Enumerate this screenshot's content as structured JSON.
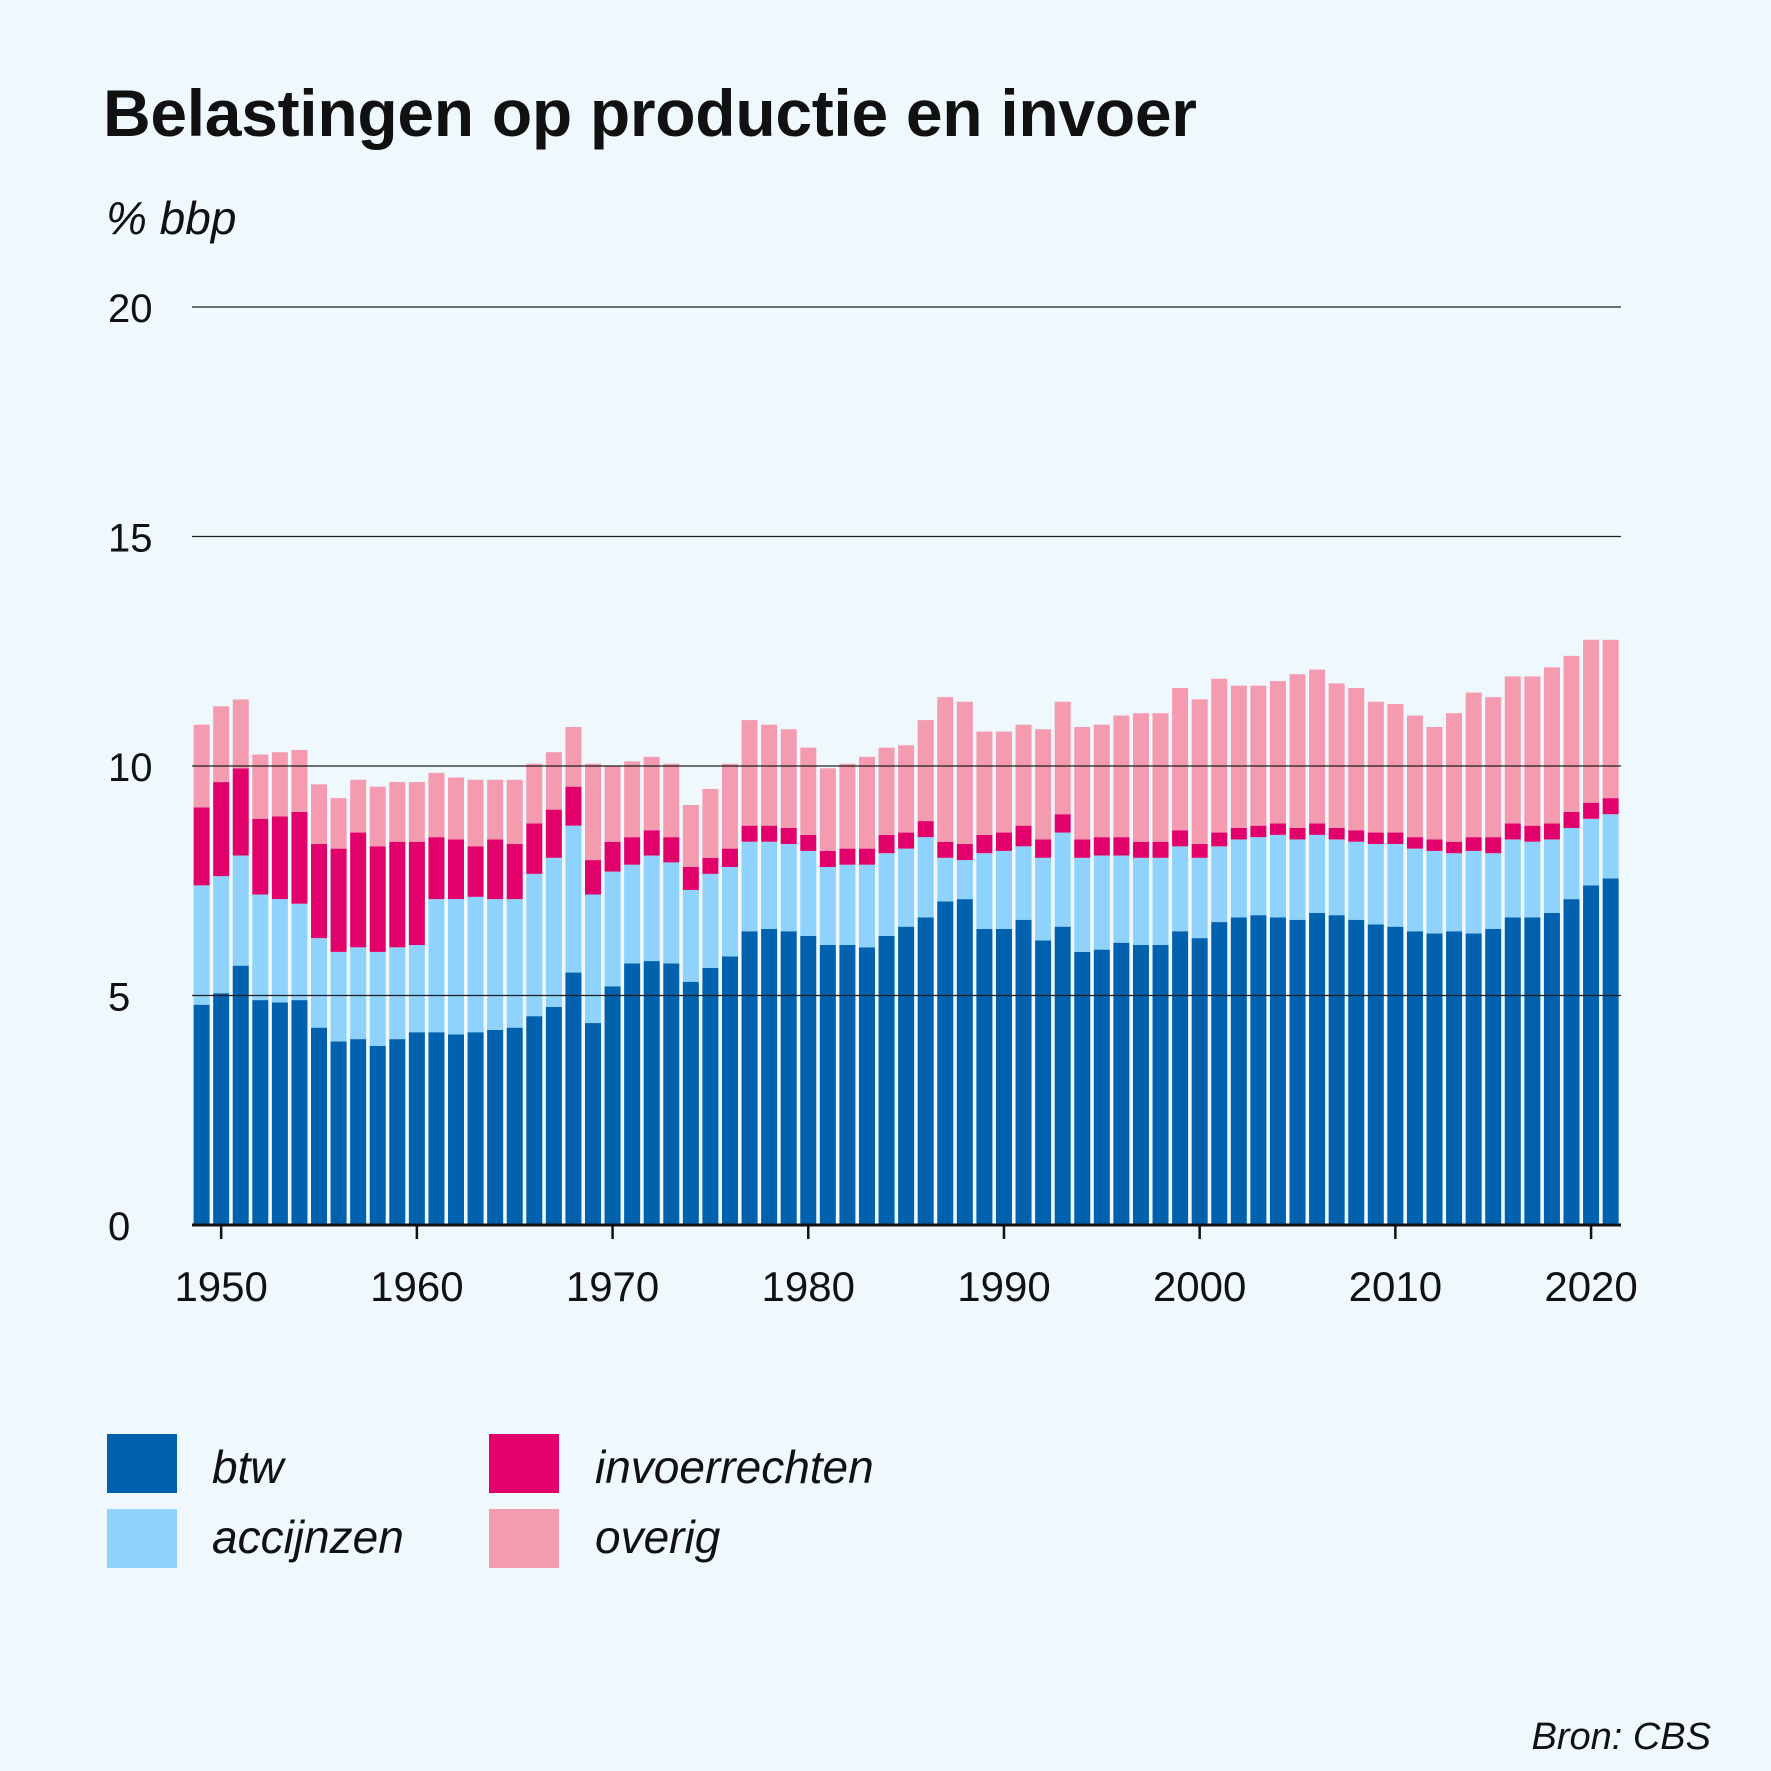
{
  "chart_data": {
    "type": "bar",
    "stacked": true,
    "title": "Belastingen op productie en invoer",
    "ylabel": "% bbp",
    "xlabel": "",
    "ylim": [
      0,
      20
    ],
    "yticks": [
      0,
      5,
      10,
      15,
      20
    ],
    "xticks": [
      1950,
      1960,
      1970,
      1980,
      1990,
      2000,
      2010,
      2020
    ],
    "grid": true,
    "source": "Bron: CBS",
    "categories": [
      1949,
      1950,
      1951,
      1952,
      1953,
      1954,
      1955,
      1956,
      1957,
      1958,
      1959,
      1960,
      1961,
      1962,
      1963,
      1964,
      1965,
      1966,
      1967,
      1968,
      1969,
      1970,
      1971,
      1972,
      1973,
      1974,
      1975,
      1976,
      1977,
      1978,
      1979,
      1980,
      1981,
      1982,
      1983,
      1984,
      1985,
      1986,
      1987,
      1988,
      1989,
      1990,
      1991,
      1992,
      1993,
      1994,
      1995,
      1996,
      1997,
      1998,
      1999,
      2000,
      2001,
      2002,
      2003,
      2004,
      2005,
      2006,
      2007,
      2008,
      2009,
      2010,
      2011,
      2012,
      2013,
      2014,
      2015,
      2016,
      2017,
      2018,
      2019,
      2020,
      2021
    ],
    "series": [
      {
        "name": "btw",
        "color": "#0061ae",
        "values": [
          4.8,
          5.05,
          5.65,
          4.9,
          4.85,
          4.9,
          4.3,
          4.0,
          4.05,
          3.9,
          4.05,
          4.2,
          4.2,
          4.15,
          4.2,
          4.25,
          4.3,
          4.55,
          4.75,
          5.5,
          4.4,
          5.2,
          5.7,
          5.75,
          5.7,
          5.3,
          5.6,
          5.85,
          6.4,
          6.45,
          6.4,
          6.3,
          6.1,
          6.1,
          6.05,
          6.3,
          6.5,
          6.7,
          7.05,
          7.1,
          6.45,
          6.45,
          6.65,
          6.2,
          6.5,
          5.95,
          6.0,
          6.15,
          6.1,
          6.1,
          6.4,
          6.25,
          6.6,
          6.7,
          6.75,
          6.7,
          6.65,
          6.8,
          6.75,
          6.65,
          6.55,
          6.5,
          6.4,
          6.35,
          6.4,
          6.35,
          6.45,
          6.7,
          6.7,
          6.8,
          7.1,
          7.4,
          7.55
        ]
      },
      {
        "name": "accijnzen",
        "color": "#8fd3fc",
        "values": [
          2.6,
          2.55,
          2.4,
          2.3,
          2.25,
          2.1,
          1.95,
          1.95,
          2.0,
          2.05,
          2.0,
          1.9,
          2.9,
          2.95,
          2.95,
          2.85,
          2.8,
          3.1,
          3.25,
          3.2,
          2.8,
          2.5,
          2.15,
          2.3,
          2.2,
          2.0,
          2.05,
          1.95,
          1.95,
          1.9,
          1.9,
          1.85,
          1.7,
          1.75,
          1.8,
          1.8,
          1.7,
          1.75,
          0.95,
          0.85,
          1.65,
          1.7,
          1.6,
          1.8,
          2.05,
          2.05,
          2.05,
          1.9,
          1.9,
          1.9,
          1.85,
          1.75,
          1.65,
          1.7,
          1.7,
          1.8,
          1.75,
          1.7,
          1.65,
          1.7,
          1.75,
          1.8,
          1.8,
          1.8,
          1.7,
          1.8,
          1.65,
          1.7,
          1.65,
          1.6,
          1.55,
          1.45,
          1.4
        ]
      },
      {
        "name": "invoerrechten",
        "color": "#e2006b",
        "values": [
          1.7,
          2.05,
          1.9,
          1.65,
          1.8,
          2.0,
          2.05,
          2.25,
          2.5,
          2.3,
          2.3,
          2.25,
          1.35,
          1.3,
          1.1,
          1.3,
          1.2,
          1.1,
          1.05,
          0.85,
          0.75,
          0.65,
          0.6,
          0.55,
          0.55,
          0.5,
          0.35,
          0.4,
          0.35,
          0.35,
          0.35,
          0.35,
          0.35,
          0.35,
          0.35,
          0.4,
          0.35,
          0.35,
          0.35,
          0.35,
          0.4,
          0.4,
          0.45,
          0.4,
          0.4,
          0.4,
          0.4,
          0.4,
          0.35,
          0.35,
          0.35,
          0.3,
          0.3,
          0.25,
          0.25,
          0.25,
          0.25,
          0.25,
          0.25,
          0.25,
          0.25,
          0.25,
          0.25,
          0.25,
          0.25,
          0.3,
          0.35,
          0.35,
          0.35,
          0.35,
          0.35,
          0.35,
          0.35
        ]
      },
      {
        "name": "overig",
        "color": "#f49bb0",
        "values": [
          1.8,
          1.65,
          1.5,
          1.4,
          1.4,
          1.35,
          1.3,
          1.1,
          1.15,
          1.3,
          1.3,
          1.3,
          1.4,
          1.35,
          1.45,
          1.3,
          1.4,
          1.3,
          1.25,
          1.3,
          2.1,
          1.65,
          1.65,
          1.6,
          1.6,
          1.35,
          1.5,
          1.85,
          2.3,
          2.2,
          2.15,
          1.9,
          1.8,
          1.85,
          2.0,
          1.9,
          1.9,
          2.2,
          3.15,
          3.1,
          2.25,
          2.2,
          2.2,
          2.4,
          2.45,
          2.45,
          2.45,
          2.65,
          2.8,
          2.8,
          3.1,
          3.15,
          3.35,
          3.1,
          3.05,
          3.1,
          3.35,
          3.35,
          3.15,
          3.1,
          2.85,
          2.8,
          2.65,
          2.45,
          2.8,
          3.15,
          3.05,
          3.2,
          3.25,
          3.4,
          3.4,
          3.55,
          3.45
        ]
      }
    ]
  }
}
